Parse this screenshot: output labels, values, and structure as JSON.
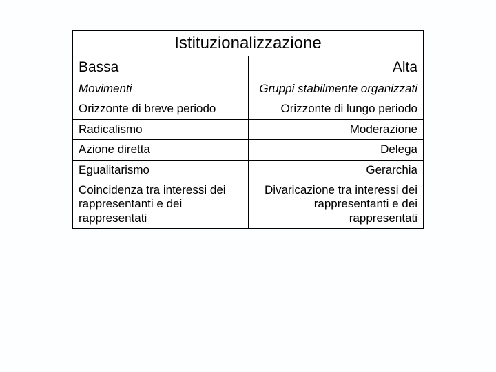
{
  "table": {
    "title": "Istituzionalizzazione",
    "headers": {
      "left": "Bassa",
      "right": "Alta"
    },
    "rows": [
      {
        "left": "Movimenti",
        "right": "Gruppi stabilmente organizzati",
        "italic": true
      },
      {
        "left": "Orizzonte di breve periodo",
        "right": "Orizzonte di lungo periodo",
        "italic": false
      },
      {
        "left": "Radicalismo",
        "right": "Moderazione",
        "italic": false
      },
      {
        "left": "Azione diretta",
        "right": "Delega",
        "italic": false
      },
      {
        "left": "Egualitarismo",
        "right": "Gerarchia",
        "italic": false
      },
      {
        "left": "Coincidenza tra interessi dei rappresentanti e dei rappresentati",
        "right": "Divaricazione tra interessi dei rappresentanti e dei rappresentati",
        "italic": false
      }
    ],
    "border_color": "#000000",
    "background_color": "#ffffff",
    "page_background": "#fcfeff",
    "title_fontsize": 24,
    "header_fontsize": 21,
    "body_fontsize": 17,
    "col_widths_pct": [
      50,
      50
    ]
  }
}
